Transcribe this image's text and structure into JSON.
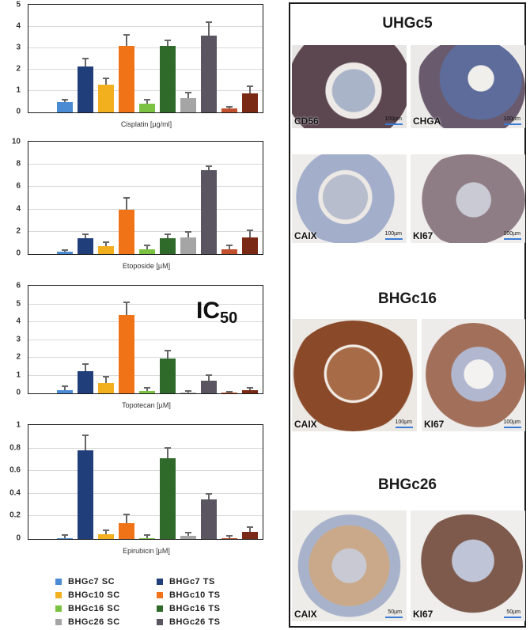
{
  "chart_data": [
    {
      "type": "bar",
      "title": "",
      "xlabel": "Cisplatin [µg/ml]",
      "ylabel": "",
      "ylim": [
        0,
        5
      ],
      "yticks": [
        0,
        1,
        2,
        3,
        4,
        5
      ],
      "grid": true,
      "categories": [
        "BHGc7 SC",
        "BHGc7 TS",
        "BHGc10 SC",
        "BHGc10 TS",
        "BHGc16 SC",
        "BHGc16 TS",
        "BHGc26 SC",
        "BHGc26 TS",
        "(unlabeled) SC",
        "(unlabeled) TS"
      ],
      "values": [
        0.5,
        2.15,
        1.3,
        3.1,
        0.4,
        3.1,
        0.65,
        3.6,
        0.18,
        0.9
      ],
      "errors": [
        0.05,
        0.35,
        0.25,
        0.5,
        0.15,
        0.25,
        0.25,
        0.6,
        0.05,
        0.3
      ]
    },
    {
      "type": "bar",
      "title": "",
      "xlabel": "Etoposide [µM]",
      "ylabel": "",
      "ylim": [
        0,
        10
      ],
      "yticks": [
        0,
        2,
        4,
        6,
        8,
        10
      ],
      "grid": true,
      "categories": [
        "BHGc7 SC",
        "BHGc7 TS",
        "BHGc10 SC",
        "BHGc10 TS",
        "BHGc16 SC",
        "BHGc16 TS",
        "BHGc26 SC",
        "BHGc26 TS",
        "(unlabeled) SC",
        "(unlabeled) TS"
      ],
      "values": [
        0.2,
        1.4,
        0.7,
        4.0,
        0.45,
        1.4,
        1.5,
        7.5,
        0.45,
        1.5
      ],
      "errors": [
        0.1,
        0.3,
        0.3,
        1.0,
        0.25,
        0.3,
        0.45,
        0.3,
        0.25,
        0.55
      ]
    },
    {
      "type": "bar",
      "title": "",
      "xlabel": "Topotecan [µM]",
      "ylabel": "",
      "ylim": [
        0,
        6
      ],
      "yticks": [
        0,
        1,
        2,
        3,
        4,
        5,
        6
      ],
      "grid": true,
      "annotation": "IC50",
      "categories": [
        "BHGc7 SC",
        "BHGc7 TS",
        "BHGc10 SC",
        "BHGc10 TS",
        "BHGc16 SC",
        "BHGc16 TS",
        "BHGc26 SC",
        "BHGc26 TS",
        "(unlabeled) SC",
        "(unlabeled) TS"
      ],
      "values": [
        0.2,
        1.25,
        0.6,
        4.4,
        0.12,
        1.95,
        0.05,
        0.72,
        0.03,
        0.2
      ],
      "errors": [
        0.15,
        0.35,
        0.3,
        0.65,
        0.15,
        0.4,
        0.05,
        0.25,
        0.02,
        0.05
      ]
    },
    {
      "type": "bar",
      "title": "",
      "xlabel": "Epirubicin [µM]",
      "ylabel": "",
      "ylim": [
        0,
        1
      ],
      "yticks": [
        0,
        0.2,
        0.4,
        0.6,
        0.8,
        1
      ],
      "grid": true,
      "categories": [
        "BHGc7 SC",
        "BHGc7 TS",
        "BHGc10 SC",
        "BHGc10 TS",
        "BHGc16 SC",
        "BHGc16 TS",
        "BHGc26 SC",
        "BHGc26 TS",
        "(unlabeled) SC",
        "(unlabeled) TS"
      ],
      "values": [
        0.01,
        0.78,
        0.04,
        0.14,
        0.01,
        0.71,
        0.03,
        0.35,
        0.01,
        0.06
      ],
      "errors": [
        0.02,
        0.13,
        0.03,
        0.07,
        0.02,
        0.09,
        0.02,
        0.04,
        0.01,
        0.04
      ]
    }
  ],
  "bar_colors": [
    "#4a8bd4",
    "#1f3e7a",
    "#f2b01e",
    "#f07318",
    "#7cc242",
    "#2f6a2a",
    "#a5a5a5",
    "#5a5560",
    "#c0502e",
    "#7a2a14"
  ],
  "charts": {
    "cisplatin": {
      "xlabel": "Cisplatin [µg/ml]",
      "yticks": [
        "0",
        "1",
        "2",
        "3",
        "4",
        "5"
      ]
    },
    "etoposide": {
      "xlabel": "Etoposide [µM]",
      "yticks": [
        "0",
        "2",
        "4",
        "6",
        "8",
        "10"
      ]
    },
    "topotecan": {
      "xlabel": "Topotecan [µM]",
      "yticks": [
        "0",
        "1",
        "2",
        "3",
        "4",
        "5",
        "6"
      ],
      "annotation_main": "IC",
      "annotation_sub": "50"
    },
    "epirubicin": {
      "xlabel": "Epirubicin [µM]",
      "yticks": [
        "0",
        "0.2",
        "0.4",
        "0.6",
        "0.8",
        "1"
      ]
    }
  },
  "legend": [
    {
      "label": "BHGc7  SC",
      "color": "#4a8bd4"
    },
    {
      "label": "BHGc7  TS",
      "color": "#1f3e7a"
    },
    {
      "label": "BHGc10  SC",
      "color": "#f2b01e"
    },
    {
      "label": "BHGc10  TS",
      "color": "#f07318"
    },
    {
      "label": "BHGc16  SC",
      "color": "#7cc242"
    },
    {
      "label": "BHGc16  TS",
      "color": "#2f6a2a"
    },
    {
      "label": "BHGc26  SC",
      "color": "#a5a5a5"
    },
    {
      "label": "BHGc26  TS",
      "color": "#5a5560"
    }
  ],
  "panel": {
    "sections": [
      {
        "title": "UHGc5",
        "images": [
          {
            "stain": "CD56",
            "scale": "100µm"
          },
          {
            "stain": "CHGA",
            "scale": "100µm"
          },
          {
            "stain": "CAIX",
            "scale": "100µm"
          },
          {
            "stain": "KI67",
            "scale": "100µm"
          }
        ]
      },
      {
        "title": "BHGc16",
        "images": [
          {
            "stain": "CAIX",
            "scale": "100µm"
          },
          {
            "stain": "KI67",
            "scale": "100µm"
          }
        ]
      },
      {
        "title": "BHGc26",
        "images": [
          {
            "stain": "CAIX",
            "scale": "50µm"
          },
          {
            "stain": "KI67",
            "scale": "50µm"
          }
        ]
      }
    ]
  }
}
